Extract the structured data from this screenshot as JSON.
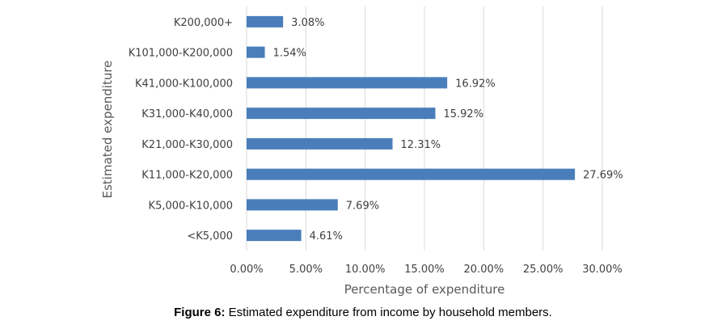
{
  "chart_data": {
    "type": "bar",
    "orientation": "horizontal",
    "categories": [
      "K200,000+",
      "K101,000-K200,000",
      "K41,000-K100,000",
      "K31,000-K40,000",
      "K21,000-K30,000",
      "K11,000-K20,000",
      "K5,000-K10,000",
      "<K5,000"
    ],
    "values": [
      3.08,
      1.54,
      16.92,
      15.92,
      12.31,
      27.69,
      7.69,
      4.61
    ],
    "data_labels": [
      "3.08%",
      "1.54%",
      "16.92%",
      "15.92%",
      "12.31%",
      "27.69%",
      "7.69%",
      "4.61%"
    ],
    "xlabel": "Percentage of expenditure",
    "ylabel": "Estimated expenditure",
    "xlim": [
      0,
      30
    ],
    "x_ticks": [
      "0.00%",
      "5.00%",
      "10.00%",
      "15.00%",
      "20.00%",
      "25.00%",
      "30.00%"
    ],
    "grid": "vertical",
    "bar_color": "#4a7ebb",
    "grid_color": "#d9d9d9"
  },
  "caption": {
    "label": "Figure 6:",
    "text": " Estimated expenditure from income by household members."
  }
}
